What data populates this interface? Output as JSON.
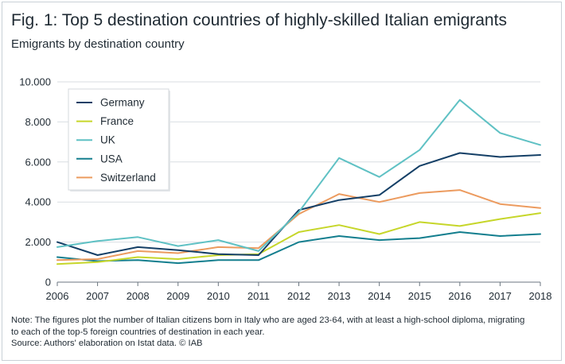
{
  "header": {
    "title": "Fig. 1: Top 5 destination countries of highly-skilled Italian emigrants",
    "subtitle": "Emigrants by destination country"
  },
  "footer": {
    "note_line1": "Note: The figures plot the number of Italian citizens born in Italy who are aged 23-64, with at least a high-school diploma, migrating",
    "note_line2": "to each of the top-5 foreign countries of destination in each year.",
    "source": "Source: Authors' elaboration on Istat data.  © IAB"
  },
  "chart_data": {
    "type": "line",
    "title": "Fig. 1: Top 5 destination countries of highly-skilled Italian emigrants",
    "subtitle": "Emigrants by destination country",
    "x": [
      2006,
      2007,
      2008,
      2009,
      2010,
      2011,
      2012,
      2013,
      2014,
      2015,
      2016,
      2017,
      2018
    ],
    "x_tick_labels": [
      "2006",
      "2007",
      "2008",
      "2009",
      "2010",
      "2011",
      "2012",
      "2013",
      "2014",
      "2015",
      "2016",
      "2017",
      "2018"
    ],
    "ylim": [
      0,
      10000
    ],
    "y_ticks": [
      0,
      2000,
      4000,
      6000,
      8000,
      10000
    ],
    "y_tick_labels": [
      "0",
      "2.000",
      "4.000",
      "6.000",
      "8.000",
      "10.000"
    ],
    "grid": "horizontal",
    "legend_position": "top-left",
    "series": [
      {
        "name": "Germany",
        "color": "#143f66",
        "values": [
          2000,
          1350,
          1750,
          1600,
          1400,
          1350,
          3600,
          4100,
          4350,
          5800,
          6450,
          6250,
          6350
        ]
      },
      {
        "name": "France",
        "color": "#c6d62a",
        "values": [
          900,
          1000,
          1250,
          1150,
          1350,
          1400,
          2500,
          2850,
          2400,
          3000,
          2800,
          3150,
          3450
        ]
      },
      {
        "name": "UK",
        "color": "#5fc1c4",
        "values": [
          1750,
          2050,
          2250,
          1800,
          2100,
          1550,
          3500,
          6200,
          5250,
          6600,
          9100,
          7450,
          6850
        ]
      },
      {
        "name": "USA",
        "color": "#137e8e",
        "values": [
          1250,
          1050,
          1100,
          950,
          1100,
          1100,
          2000,
          2300,
          2100,
          2200,
          2500,
          2300,
          2400
        ]
      },
      {
        "name": "Switzerland",
        "color": "#ec9b5f",
        "values": [
          1100,
          1150,
          1550,
          1450,
          1750,
          1700,
          3400,
          4400,
          4000,
          4450,
          4600,
          3900,
          3700
        ]
      }
    ]
  }
}
